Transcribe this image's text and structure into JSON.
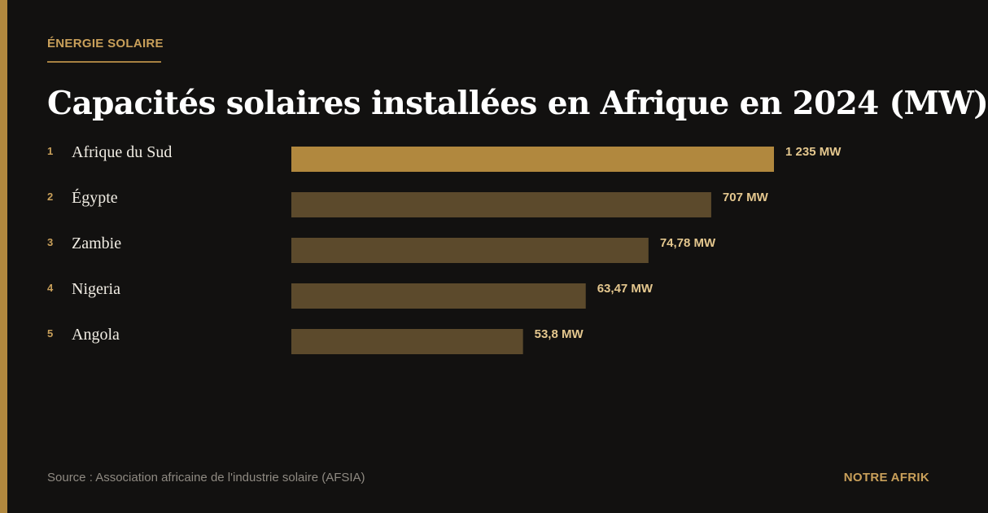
{
  "kicker": "ÉNERGIE SOLAIRE",
  "title": "Capacités solaires installées en Afrique en 2024 (MW)",
  "source": "Source : Association africaine de l'industrie solaire (AFSIA)",
  "brand": "NOTRE AFRIK",
  "colors": {
    "background": "#121110",
    "accent": "#b1883e",
    "bar_highlight": "#b1883e",
    "bar_default": "#5c4a2c"
  },
  "chart_data": {
    "type": "bar",
    "orientation": "horizontal",
    "categories": [
      "Afrique du Sud",
      "Égypte",
      "Zambie",
      "Nigeria",
      "Angola"
    ],
    "ranks": [
      "1",
      "2",
      "3",
      "4",
      "5"
    ],
    "values": [
      1235,
      707,
      74.78,
      63.47,
      53.8
    ],
    "value_labels": [
      "1 235 MW",
      "707 MW",
      "74,78 MW",
      "63,47 MW",
      "53,8 MW"
    ],
    "bar_fractions": [
      1.0,
      0.87,
      0.74,
      0.61,
      0.48
    ],
    "title": "Capacités solaires installées en Afrique en 2024 (MW)",
    "grid": false,
    "legend": "none"
  }
}
